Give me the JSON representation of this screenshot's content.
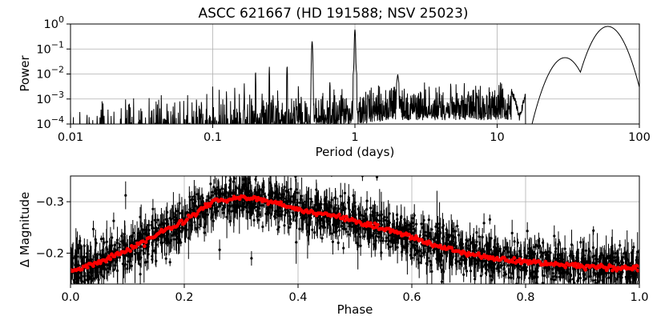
{
  "title": "ASCC 621667  (HD 191588; NSV 25023)",
  "chart_data": [
    {
      "type": "line",
      "name": "periodogram",
      "xlabel": "Period (days)",
      "ylabel": "Power",
      "xscale": "log",
      "yscale": "log",
      "xlim": [
        0.01,
        100
      ],
      "ylim": [
        0.0001,
        1
      ],
      "grid": true,
      "xticks": [
        {
          "value": 0.01,
          "label": "0.01"
        },
        {
          "value": 0.1,
          "label": "0.1"
        },
        {
          "value": 1,
          "label": "1"
        },
        {
          "value": 10,
          "label": "10"
        },
        {
          "value": 100,
          "label": "100"
        }
      ],
      "yticks": [
        {
          "value": 0.0001,
          "base": "10",
          "exp": "−4"
        },
        {
          "value": 0.001,
          "base": "10",
          "exp": "−3"
        },
        {
          "value": 0.01,
          "base": "10",
          "exp": "−2"
        },
        {
          "value": 0.1,
          "base": "10",
          "exp": "−1"
        },
        {
          "value": 1,
          "base": "10",
          "exp": "0"
        }
      ],
      "peaks": [
        {
          "period": 0.5,
          "power": 0.2
        },
        {
          "period": 1.0,
          "power": 0.6
        },
        {
          "period": 30,
          "power": 0.045
        },
        {
          "period": 60,
          "power": 0.8
        }
      ],
      "color": "#000000"
    },
    {
      "type": "scatter",
      "name": "phased light curve",
      "xlabel": "Phase",
      "ylabel": "Δ Magnitude",
      "xlim": [
        0.0,
        1.0
      ],
      "ylim": [
        -0.14,
        -0.35
      ],
      "inverted_y": true,
      "grid": true,
      "xticks": [
        {
          "value": 0.0,
          "label": "0.0"
        },
        {
          "value": 0.2,
          "label": "0.2"
        },
        {
          "value": 0.4,
          "label": "0.4"
        },
        {
          "value": 0.6,
          "label": "0.6"
        },
        {
          "value": 0.8,
          "label": "0.8"
        },
        {
          "value": 1.0,
          "label": "1.0"
        }
      ],
      "yticks": [
        {
          "value": -0.3,
          "label": "−0.3"
        },
        {
          "value": -0.2,
          "label": "−0.2"
        }
      ],
      "binned_fit": {
        "color": "#ff0000",
        "phase": [
          0.0,
          0.05,
          0.1,
          0.15,
          0.2,
          0.25,
          0.3,
          0.35,
          0.4,
          0.45,
          0.5,
          0.55,
          0.6,
          0.65,
          0.7,
          0.75,
          0.8,
          0.85,
          0.9,
          0.95,
          1.0
        ],
        "mag": [
          -0.165,
          -0.182,
          -0.205,
          -0.235,
          -0.262,
          -0.3,
          -0.308,
          -0.301,
          -0.285,
          -0.275,
          -0.262,
          -0.248,
          -0.232,
          -0.212,
          -0.198,
          -0.188,
          -0.183,
          -0.178,
          -0.175,
          -0.172,
          -0.17
        ]
      },
      "points_color": "#000000"
    }
  ]
}
